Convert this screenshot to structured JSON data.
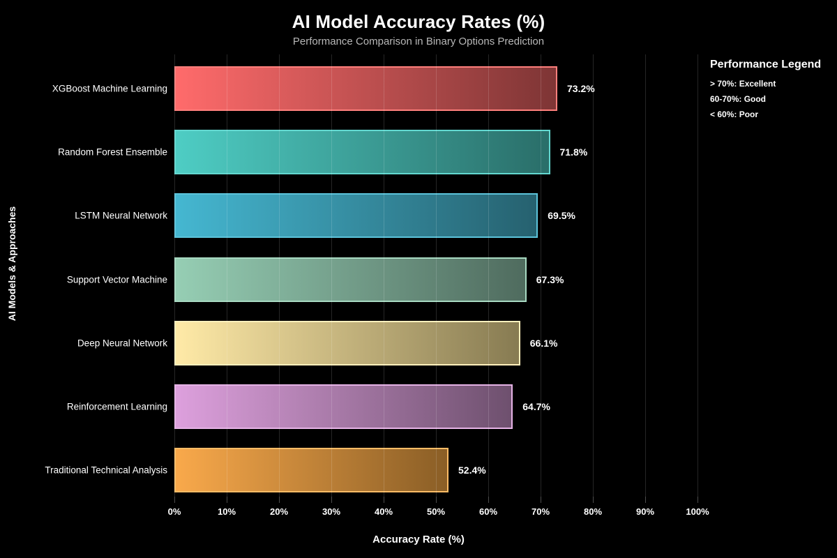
{
  "header": {
    "title": "AI Model Accuracy Rates (%)",
    "subtitle": "Performance Comparison in Binary Options Prediction"
  },
  "axes": {
    "x_label": "Accuracy Rate (%)",
    "y_label": "AI Models & Approaches"
  },
  "legend": {
    "title": "Performance Legend",
    "items": [
      "> 70%: Excellent",
      "60-70%: Good",
      "< 60%: Poor"
    ]
  },
  "colors": {
    "background": "#000000",
    "text": "#ffffff",
    "subtitle_text": "#b8b8b8",
    "gridline": "rgba(255,255,255,0.15)"
  },
  "chart_data": {
    "type": "bar",
    "orientation": "horizontal",
    "title": "AI Model Accuracy Rates (%)",
    "subtitle": "Performance Comparison in Binary Options Prediction",
    "xlabel": "Accuracy Rate (%)",
    "ylabel": "AI Models & Approaches",
    "xlim": [
      0,
      100
    ],
    "grid": true,
    "legend_position": "top-right",
    "x_tick_labels": [
      "0%",
      "10%",
      "20%",
      "30%",
      "40%",
      "50%",
      "60%",
      "70%",
      "80%",
      "90%",
      "100%"
    ],
    "rows": [
      {
        "label": "XGBoost Machine Learning",
        "value": 73.2,
        "value_label": "73.2%",
        "color_light": "#FF6B6B",
        "color_dark": "#7E3535",
        "color_border": "#FF7F7C"
      },
      {
        "label": "Random Forest Ensemble",
        "value": 71.8,
        "value_label": "71.8%",
        "color_light": "#4ECDC4",
        "color_dark": "#2A6E69",
        "color_border": "#63D8D0"
      },
      {
        "label": "LSTM Neural Network",
        "value": 69.5,
        "value_label": "69.5%",
        "color_light": "#45B7D1",
        "color_dark": "#26616F",
        "color_border": "#5CC4DB"
      },
      {
        "label": "Support Vector Machine",
        "value": 67.3,
        "value_label": "67.3%",
        "color_light": "#96CEB4",
        "color_dark": "#4F6B5E",
        "color_border": "#A8DAC2"
      },
      {
        "label": "Deep Neural Network",
        "value": 66.1,
        "value_label": "66.1%",
        "color_light": "#FFEAA7",
        "color_dark": "#877B52",
        "color_border": "#FFF0BC"
      },
      {
        "label": "Reinforcement Learning",
        "value": 64.7,
        "value_label": "64.7%",
        "color_light": "#DDA0DD",
        "color_dark": "#6E506E",
        "color_border": "#E6B3E6"
      },
      {
        "label": "Traditional Technical Analysis",
        "value": 52.4,
        "value_label": "52.4%",
        "color_light": "#F9A94B",
        "color_dark": "#8A5E26",
        "color_border": "#FBBC66"
      }
    ]
  }
}
